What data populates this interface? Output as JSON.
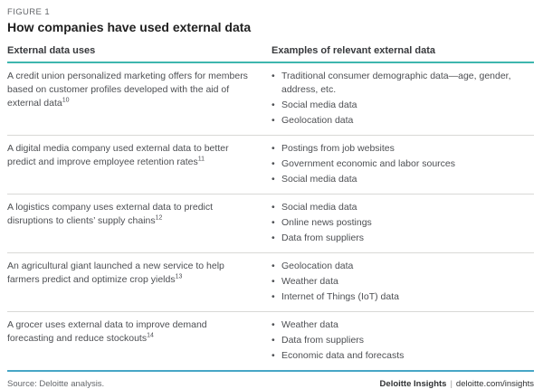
{
  "figure": {
    "label": "FIGURE 1",
    "title": "How companies have used external data"
  },
  "table": {
    "columns": {
      "uses": "External data uses",
      "examples": "Examples of relevant external data"
    },
    "rows": [
      {
        "use": "A credit union personalized marketing offers for members based on customer profiles developed with the aid of external data",
        "footnote": "10",
        "examples": [
          "Traditional consumer demographic data—age, gender, address, etc.",
          "Social media data",
          "Geolocation data"
        ]
      },
      {
        "use": "A digital media company used external data to better predict and improve employee retention rates",
        "footnote": "11",
        "examples": [
          "Postings from job websites",
          "Government economic and labor sources",
          "Social media data"
        ]
      },
      {
        "use": "A logistics company uses external data to predict disruptions to clients’ supply chains",
        "footnote": "12",
        "examples": [
          "Social media data",
          "Online news postings",
          "Data from suppliers"
        ]
      },
      {
        "use": "An agricultural giant launched a new service to help farmers predict and optimize crop yields",
        "footnote": "13",
        "examples": [
          "Geolocation data",
          "Weather data",
          "Internet of Things (IoT) data"
        ]
      },
      {
        "use": "A grocer uses external data to improve demand forecasting and reduce stockouts",
        "footnote": "14",
        "examples": [
          "Weather data",
          "Data from suppliers",
          "Economic data and forecasts"
        ]
      }
    ]
  },
  "footer": {
    "source": "Source: Deloitte analysis.",
    "brand": "Deloitte Insights",
    "separator": "|",
    "url": "deloitte.com/insights"
  },
  "colors": {
    "accent_teal": "#3eb6ae",
    "accent_blue": "#47a6c6",
    "divider": "#d9d9d6",
    "body_text": "#4d4f53",
    "muted": "#63666a",
    "dark": "#212121"
  }
}
